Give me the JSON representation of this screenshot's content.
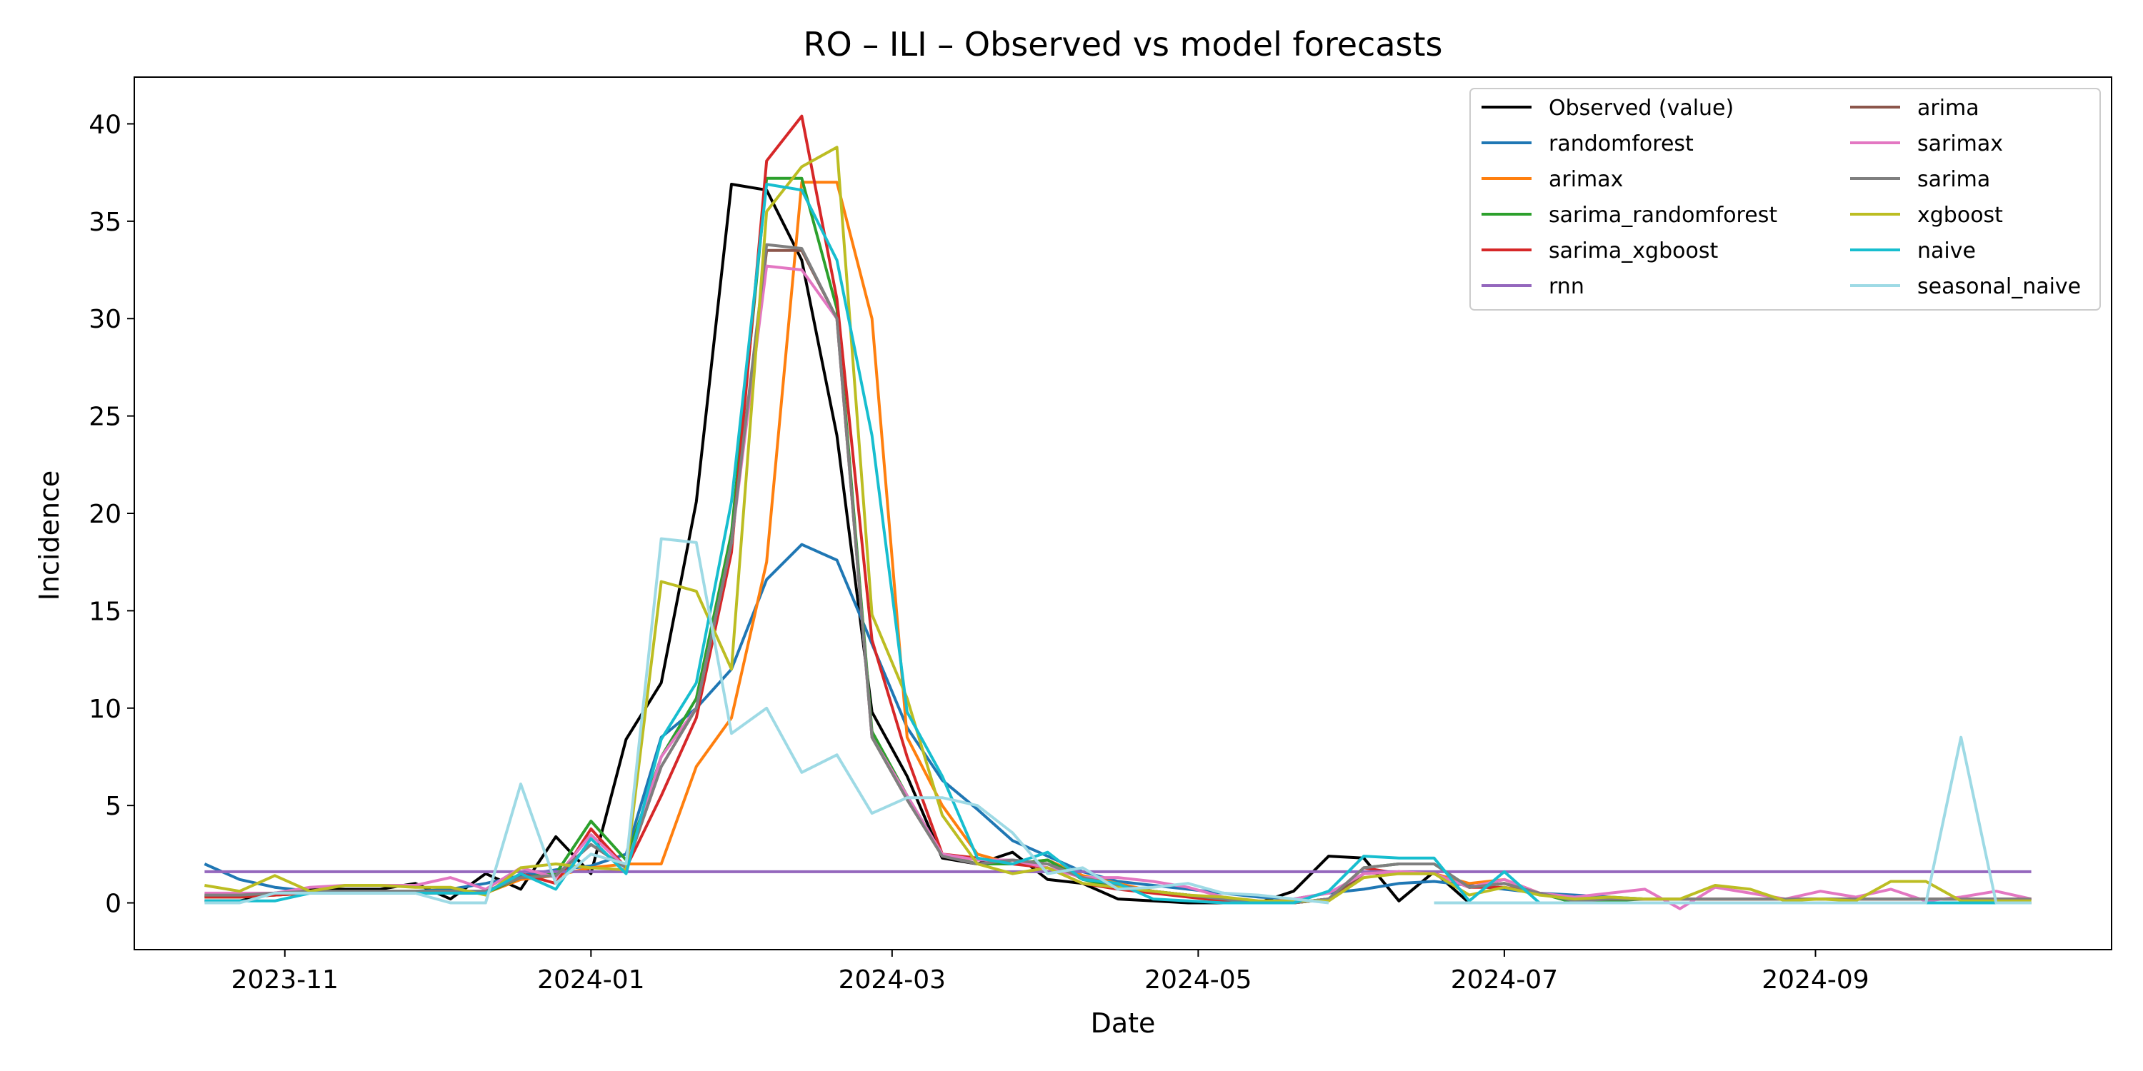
{
  "chart_data": {
    "type": "line",
    "title": "RO – ILI – Observed vs model forecasts",
    "xlabel": "Date",
    "ylabel": "Incidence",
    "xlim": [
      "2023-10-02",
      "2024-10-30"
    ],
    "ylim": [
      -2.4,
      42.4
    ],
    "xticks": [
      {
        "date": "2023-11-01",
        "label": "2023-11"
      },
      {
        "date": "2024-01-01",
        "label": "2024-01"
      },
      {
        "date": "2024-03-01",
        "label": "2024-03"
      },
      {
        "date": "2024-05-01",
        "label": "2024-05"
      },
      {
        "date": "2024-07-01",
        "label": "2024-07"
      },
      {
        "date": "2024-09-01",
        "label": "2024-09"
      }
    ],
    "yticks": [
      0,
      5,
      10,
      15,
      20,
      25,
      30,
      35,
      40
    ],
    "grid": false,
    "legend": "top-right",
    "x": [
      "2023-10-16",
      "2023-10-23",
      "2023-10-30",
      "2023-11-06",
      "2023-11-13",
      "2023-11-20",
      "2023-11-27",
      "2023-12-04",
      "2023-12-11",
      "2023-12-18",
      "2023-12-25",
      "2024-01-01",
      "2024-01-08",
      "2024-01-15",
      "2024-01-22",
      "2024-01-29",
      "2024-02-05",
      "2024-02-12",
      "2024-02-19",
      "2024-02-26",
      "2024-03-04",
      "2024-03-11",
      "2024-03-18",
      "2024-03-25",
      "2024-04-01",
      "2024-04-08",
      "2024-04-15",
      "2024-04-22",
      "2024-04-29",
      "2024-05-06",
      "2024-05-13",
      "2024-05-20",
      "2024-05-27",
      "2024-06-03",
      "2024-06-10",
      "2024-06-17",
      "2024-06-24",
      "2024-07-01",
      "2024-07-08",
      "2024-07-15",
      "2024-07-22",
      "2024-07-29",
      "2024-08-05",
      "2024-08-12",
      "2024-08-19",
      "2024-08-26",
      "2024-09-02",
      "2024-09-09",
      "2024-09-16",
      "2024-09-23",
      "2024-09-30",
      "2024-10-07",
      "2024-10-14"
    ],
    "series": [
      {
        "name": "Observed (value)",
        "color": "#000000",
        "values": [
          0.1,
          0.1,
          0.5,
          0.7,
          0.7,
          0.7,
          1.0,
          0.2,
          1.5,
          0.7,
          3.4,
          1.5,
          8.4,
          11.3,
          20.6,
          36.9,
          36.6,
          33.0,
          24.0,
          9.8,
          6.5,
          2.3,
          2.0,
          2.6,
          1.2,
          1.0,
          0.2,
          0.1,
          0.0,
          0.0,
          0.0,
          0.6,
          2.4,
          2.3,
          0.1,
          1.6,
          0.0,
          0.0,
          0.0,
          0.0,
          0.0,
          0.0,
          0.0,
          0.0,
          0.0,
          0.0,
          0.0,
          0.0,
          0.0,
          0.0,
          0.0,
          0.0,
          0.0
        ]
      },
      {
        "name": "randomforest",
        "color": "#1f77b4",
        "values": [
          2.0,
          1.2,
          0.8,
          0.6,
          0.6,
          0.6,
          0.6,
          0.7,
          1.0,
          1.4,
          1.7,
          1.9,
          2.5,
          8.5,
          10.0,
          12.0,
          16.6,
          18.4,
          17.6,
          13.3,
          9.0,
          6.3,
          4.8,
          3.2,
          2.4,
          1.6,
          1.1,
          0.9,
          0.7,
          0.5,
          0.3,
          0.2,
          0.5,
          0.7,
          1.0,
          1.1,
          0.9,
          0.7,
          0.5,
          0.4,
          0.3,
          0.2,
          0.2,
          0.2,
          0.2,
          0.2,
          0.2,
          0.2,
          0.2,
          0.2,
          0.2,
          0.2,
          0.2
        ]
      },
      {
        "name": "arimax",
        "color": "#ff7f0e",
        "values": [
          0.3,
          0.3,
          0.4,
          0.5,
          0.5,
          0.5,
          0.5,
          0.5,
          0.5,
          1.2,
          1.4,
          1.8,
          2.0,
          2.0,
          7.0,
          9.5,
          17.5,
          37.0,
          37.0,
          30.0,
          8.5,
          5.0,
          2.5,
          2.0,
          2.2,
          1.4,
          1.0,
          0.6,
          0.4,
          0.2,
          0.0,
          0.0,
          0.2,
          1.5,
          1.6,
          1.5,
          1.0,
          1.2,
          0.5,
          0.2,
          0.2,
          0.2,
          0.2,
          0.2,
          0.2,
          0.2,
          0.2,
          0.2,
          0.2,
          0.2,
          0.2,
          0.2,
          0.2
        ]
      },
      {
        "name": "sarima_randomforest",
        "color": "#2ca02c",
        "values": [
          0.3,
          0.3,
          0.4,
          0.5,
          0.5,
          0.5,
          0.5,
          0.5,
          0.5,
          1.3,
          1.5,
          4.2,
          2.2,
          7.5,
          10.5,
          19.0,
          37.2,
          37.2,
          30.5,
          8.8,
          5.5,
          2.5,
          2.0,
          2.0,
          2.2,
          1.2,
          0.8,
          0.6,
          0.4,
          0.1,
          0.0,
          0.0,
          0.2,
          1.8,
          2.0,
          2.0,
          0.8,
          1.0,
          0.5,
          0.0,
          0.1,
          0.2,
          0.2,
          0.2,
          0.2,
          0.2,
          0.2,
          0.2,
          0.2,
          0.2,
          0.2,
          0.2,
          0.2
        ]
      },
      {
        "name": "sarima_xgboost",
        "color": "#d62728",
        "values": [
          0.3,
          0.3,
          0.4,
          0.5,
          0.5,
          0.5,
          0.5,
          0.5,
          0.5,
          1.5,
          1.0,
          3.8,
          1.8,
          5.5,
          9.5,
          18.0,
          38.1,
          40.4,
          31.0,
          13.5,
          7.5,
          2.5,
          2.3,
          2.0,
          1.8,
          1.0,
          0.7,
          0.5,
          0.3,
          0.1,
          0.0,
          0.0,
          0.2,
          1.8,
          1.5,
          1.5,
          0.8,
          0.8,
          0.5,
          0.2,
          0.2,
          0.2,
          0.2,
          0.2,
          0.2,
          0.2,
          0.2,
          0.2,
          0.2,
          0.2,
          0.2,
          0.2,
          0.2
        ]
      },
      {
        "name": "rnn",
        "color": "#9467bd",
        "values": [
          1.6,
          1.6,
          1.6,
          1.6,
          1.6,
          1.6,
          1.6,
          1.6,
          1.6,
          1.6,
          1.6,
          1.6,
          1.6,
          1.6,
          1.6,
          1.6,
          1.6,
          1.6,
          1.6,
          1.6,
          1.6,
          1.6,
          1.6,
          1.6,
          1.6,
          1.6,
          1.6,
          1.6,
          1.6,
          1.6,
          1.6,
          1.6,
          1.6,
          1.6,
          1.6,
          1.6,
          1.6,
          1.6,
          1.6,
          1.6,
          1.6,
          1.6,
          1.6,
          1.6,
          1.6,
          1.6,
          1.6,
          1.6,
          1.6,
          1.6,
          1.6,
          1.6,
          1.6
        ]
      },
      {
        "name": "arima",
        "color": "#8c564b",
        "values": [
          0.4,
          0.4,
          0.5,
          0.6,
          0.6,
          0.6,
          0.6,
          0.6,
          0.6,
          1.3,
          1.4,
          3.0,
          1.8,
          7.0,
          10.0,
          18.5,
          33.5,
          33.5,
          30.0,
          8.5,
          5.3,
          2.4,
          2.0,
          2.2,
          2.0,
          1.3,
          0.9,
          0.6,
          0.4,
          0.2,
          0.0,
          0.0,
          0.2,
          1.5,
          1.6,
          1.5,
          0.8,
          1.0,
          0.5,
          0.1,
          0.2,
          0.2,
          0.2,
          0.2,
          0.2,
          0.2,
          0.2,
          0.2,
          0.2,
          0.2,
          0.2,
          0.2,
          0.2
        ]
      },
      {
        "name": "sarimax",
        "color": "#e377c2",
        "values": [
          0.5,
          0.5,
          0.5,
          0.8,
          0.9,
          0.9,
          0.9,
          1.3,
          0.7,
          1.8,
          1.3,
          3.5,
          1.8,
          7.5,
          10.0,
          18.5,
          32.7,
          32.5,
          30.0,
          8.5,
          5.5,
          2.5,
          2.2,
          2.2,
          1.8,
          1.3,
          1.3,
          1.1,
          0.8,
          0.3,
          0.0,
          0.2,
          0.5,
          1.5,
          1.6,
          1.5,
          0.8,
          1.2,
          0.5,
          0.3,
          0.5,
          0.7,
          -0.3,
          0.8,
          0.5,
          0.2,
          0.6,
          0.3,
          0.7,
          0.1,
          0.3,
          0.6,
          0.2
        ]
      },
      {
        "name": "sarima",
        "color": "#7f7f7f",
        "values": [
          0.4,
          0.4,
          0.5,
          0.6,
          0.6,
          0.6,
          0.6,
          0.6,
          0.6,
          1.3,
          1.4,
          3.0,
          1.8,
          7.0,
          10.0,
          18.5,
          33.8,
          33.6,
          30.0,
          8.5,
          5.3,
          2.4,
          2.0,
          2.2,
          2.0,
          1.3,
          0.9,
          0.6,
          0.4,
          0.2,
          0.0,
          0.0,
          0.2,
          1.8,
          2.0,
          2.0,
          0.8,
          1.0,
          0.5,
          0.1,
          0.2,
          0.2,
          0.2,
          0.2,
          0.2,
          0.2,
          0.2,
          0.2,
          0.2,
          0.2,
          0.2,
          0.2,
          0.2
        ]
      },
      {
        "name": "xgboost",
        "color": "#bcbd22",
        "values": [
          0.9,
          0.6,
          1.4,
          0.6,
          0.9,
          0.9,
          0.8,
          0.8,
          0.4,
          1.8,
          2.0,
          1.8,
          1.7,
          16.5,
          16.0,
          12.0,
          35.5,
          37.8,
          38.8,
          14.8,
          10.5,
          4.5,
          2.0,
          1.5,
          1.8,
          1.0,
          0.8,
          0.6,
          0.4,
          0.3,
          0.1,
          0.1,
          0.1,
          1.3,
          1.5,
          1.5,
          0.4,
          0.8,
          0.4,
          0.2,
          0.3,
          0.2,
          0.2,
          0.9,
          0.7,
          0.1,
          0.2,
          0.1,
          1.1,
          1.1,
          0.1,
          0.1,
          0.1
        ]
      },
      {
        "name": "naive",
        "color": "#17becf",
        "values": [
          0.1,
          0.1,
          0.1,
          0.5,
          0.5,
          0.5,
          0.5,
          0.5,
          0.5,
          1.5,
          0.7,
          3.3,
          1.5,
          8.4,
          11.3,
          20.6,
          36.9,
          36.6,
          33.0,
          24.0,
          9.8,
          6.5,
          2.3,
          2.0,
          2.6,
          1.2,
          1.0,
          0.2,
          0.1,
          0.0,
          0.0,
          0.0,
          0.6,
          2.4,
          2.3,
          2.3,
          0.1,
          1.6,
          0.0,
          0.0,
          0.0,
          0.0,
          0.0,
          0.0,
          0.0,
          0.0,
          0.0,
          0.0,
          0.0,
          0.0,
          0.0,
          0.0,
          0.0
        ]
      },
      {
        "name": "seasonal_naive",
        "color": "#9edae5",
        "values": [
          0.0,
          0.0,
          0.5,
          0.5,
          0.5,
          0.5,
          0.5,
          0.0,
          0.0,
          6.1,
          1.0,
          2.5,
          2.0,
          18.7,
          18.5,
          8.7,
          10.0,
          6.7,
          7.6,
          4.6,
          5.4,
          5.4,
          5.0,
          3.6,
          1.5,
          1.8,
          0.7,
          0.8,
          1.0,
          0.5,
          0.4,
          0.2,
          0.0,
          null,
          null,
          0.0,
          0.0,
          0.0,
          0.0,
          0.0,
          0.0,
          0.0,
          0.0,
          0.0,
          0.0,
          0.0,
          0.0,
          0.0,
          0.0,
          0.0,
          8.5,
          0.0,
          0.0
        ]
      }
    ]
  }
}
